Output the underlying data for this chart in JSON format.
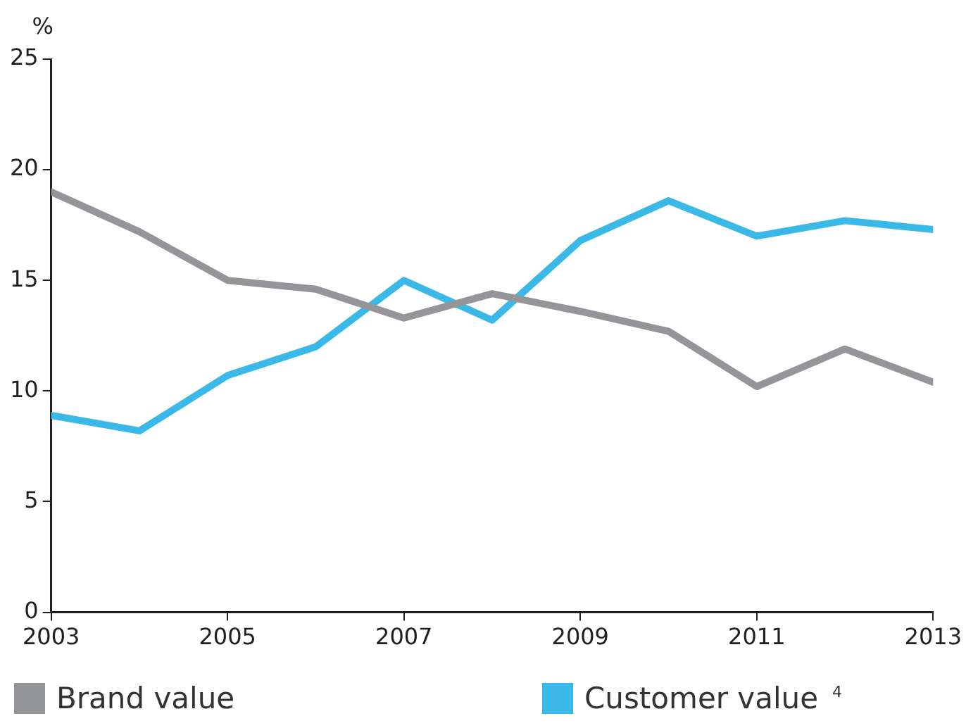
{
  "chart_data": {
    "type": "line",
    "ylabel": "%",
    "x": [
      2003,
      2004,
      2005,
      2006,
      2007,
      2008,
      2009,
      2010,
      2011,
      2012,
      2013
    ],
    "xlim": [
      2003,
      2013
    ],
    "xticks": [
      2003,
      2005,
      2007,
      2009,
      2011,
      2013
    ],
    "ylim": [
      0,
      25
    ],
    "yticks": [
      0,
      5,
      10,
      15,
      20,
      25
    ],
    "grid": false,
    "legend": "bottom",
    "marker": "none",
    "line_style": "solid",
    "series": [
      {
        "name": "Brand value",
        "color": "#939598",
        "values": [
          19.0,
          17.2,
          15.0,
          14.6,
          13.3,
          14.4,
          13.6,
          12.7,
          10.2,
          11.9,
          10.4
        ]
      },
      {
        "name": "Customer value$^{4}$",
        "color": "#3ab8e8",
        "values": [
          8.9,
          8.2,
          10.7,
          12.0,
          15.0,
          13.2,
          16.8,
          18.6,
          17.0,
          17.7,
          17.3
        ]
      }
    ]
  }
}
